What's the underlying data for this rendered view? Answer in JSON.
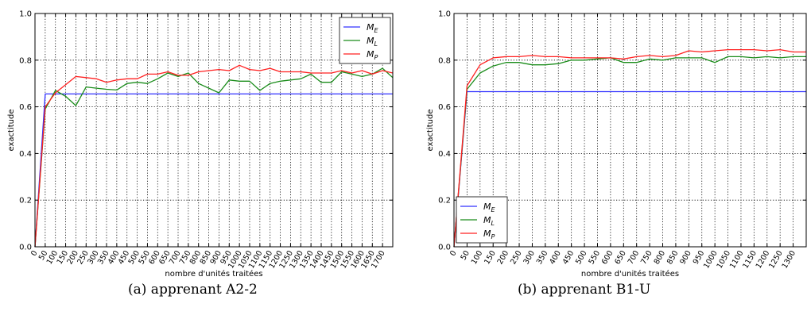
{
  "chart_data": [
    {
      "type": "line",
      "caption": "(a) apprenant A2-2",
      "xlabel": "nombre d'unités traitées",
      "ylabel": "exactitude",
      "ylim": [
        0.0,
        1.0
      ],
      "xlim": [
        0,
        1750
      ],
      "grid": true,
      "legend_position": "top-right",
      "yticks": [
        "0.0",
        "0.2",
        "0.4",
        "0.6",
        "0.8",
        "1.0"
      ],
      "x": [
        0,
        50,
        100,
        150,
        200,
        250,
        300,
        350,
        400,
        450,
        500,
        550,
        600,
        650,
        700,
        750,
        800,
        850,
        900,
        950,
        1000,
        1050,
        1100,
        1150,
        1200,
        1250,
        1300,
        1350,
        1400,
        1450,
        1500,
        1550,
        1600,
        1650,
        1700,
        1750
      ],
      "xticks": [
        "0",
        "50",
        "100",
        "150",
        "200",
        "250",
        "300",
        "350",
        "400",
        "450",
        "500",
        "550",
        "600",
        "650",
        "700",
        "750",
        "800",
        "850",
        "900",
        "950",
        "1000",
        "1050",
        "1100",
        "1150",
        "1200",
        "1250",
        "1300",
        "1350",
        "1400",
        "1450",
        "1500",
        "1550",
        "1600",
        "1650",
        "1700"
      ],
      "series": [
        {
          "name": "M",
          "sub": "E",
          "color": "#3030ff",
          "values": [
            0,
            0.655,
            0.655,
            0.655,
            0.655,
            0.655,
            0.655,
            0.655,
            0.655,
            0.655,
            0.655,
            0.655,
            0.655,
            0.655,
            0.655,
            0.655,
            0.655,
            0.655,
            0.655,
            0.655,
            0.655,
            0.655,
            0.655,
            0.655,
            0.655,
            0.655,
            0.655,
            0.655,
            0.655,
            0.655,
            0.655,
            0.655,
            0.655,
            0.655,
            0.655,
            0.655
          ]
        },
        {
          "name": "M",
          "sub": "L",
          "color": "#1a8c1a",
          "values": [
            0,
            0.59,
            0.67,
            0.645,
            0.605,
            0.685,
            0.68,
            0.675,
            0.672,
            0.7,
            0.705,
            0.7,
            0.72,
            0.745,
            0.73,
            0.745,
            0.7,
            0.68,
            0.66,
            0.715,
            0.71,
            0.71,
            0.67,
            0.7,
            0.71,
            0.715,
            0.72,
            0.74,
            0.705,
            0.705,
            0.75,
            0.74,
            0.73,
            0.74,
            0.765,
            0.725
          ]
        },
        {
          "name": "M",
          "sub": "P",
          "color": "#ff2020",
          "values": [
            0,
            0.6,
            0.66,
            0.695,
            0.73,
            0.725,
            0.72,
            0.705,
            0.715,
            0.72,
            0.72,
            0.74,
            0.74,
            0.75,
            0.735,
            0.735,
            0.75,
            0.755,
            0.76,
            0.755,
            0.778,
            0.76,
            0.755,
            0.765,
            0.75,
            0.75,
            0.75,
            0.745,
            0.745,
            0.745,
            0.755,
            0.745,
            0.755,
            0.74,
            0.755,
            0.745
          ]
        }
      ]
    },
    {
      "type": "line",
      "caption": "(b) apprenant B1-U",
      "xlabel": "nombre d'unités traitées",
      "ylabel": "exactitude",
      "ylim": [
        0.0,
        1.0
      ],
      "xlim": [
        0,
        1350
      ],
      "grid": true,
      "legend_position": "bottom-left",
      "yticks": [
        "0.0",
        "0.2",
        "0.4",
        "0.6",
        "0.8",
        "1.0"
      ],
      "x": [
        0,
        50,
        100,
        150,
        200,
        250,
        300,
        350,
        400,
        450,
        500,
        550,
        600,
        650,
        700,
        750,
        800,
        850,
        900,
        950,
        1000,
        1050,
        1100,
        1150,
        1200,
        1250,
        1300,
        1350
      ],
      "xticks": [
        "0",
        "50",
        "100",
        "150",
        "200",
        "250",
        "300",
        "350",
        "400",
        "450",
        "500",
        "550",
        "600",
        "650",
        "700",
        "750",
        "800",
        "850",
        "900",
        "950",
        "1000",
        "1050",
        "1100",
        "1150",
        "1200",
        "1250",
        "1300"
      ],
      "series": [
        {
          "name": "M",
          "sub": "E",
          "color": "#3030ff",
          "values": [
            0,
            0.665,
            0.665,
            0.665,
            0.665,
            0.665,
            0.665,
            0.665,
            0.665,
            0.665,
            0.665,
            0.665,
            0.665,
            0.665,
            0.665,
            0.665,
            0.665,
            0.665,
            0.665,
            0.665,
            0.665,
            0.665,
            0.665,
            0.665,
            0.665,
            0.665,
            0.665,
            0.665
          ]
        },
        {
          "name": "M",
          "sub": "L",
          "color": "#1a8c1a",
          "values": [
            0,
            0.675,
            0.745,
            0.775,
            0.79,
            0.79,
            0.78,
            0.78,
            0.785,
            0.8,
            0.8,
            0.805,
            0.81,
            0.79,
            0.79,
            0.805,
            0.8,
            0.81,
            0.81,
            0.81,
            0.79,
            0.815,
            0.815,
            0.81,
            0.815,
            0.81,
            0.815,
            0.815
          ]
        },
        {
          "name": "M",
          "sub": "P",
          "color": "#ff2020",
          "values": [
            0,
            0.69,
            0.78,
            0.81,
            0.815,
            0.815,
            0.82,
            0.815,
            0.815,
            0.81,
            0.81,
            0.81,
            0.81,
            0.805,
            0.815,
            0.82,
            0.815,
            0.82,
            0.84,
            0.835,
            0.84,
            0.845,
            0.845,
            0.845,
            0.84,
            0.845,
            0.835,
            0.835
          ]
        }
      ]
    }
  ]
}
